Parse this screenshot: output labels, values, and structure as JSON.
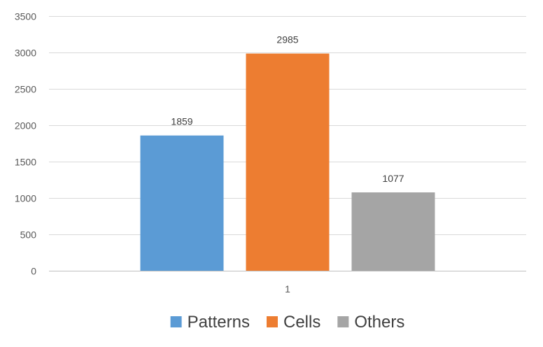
{
  "chart_data": {
    "type": "bar",
    "categories": [
      "1"
    ],
    "series": [
      {
        "name": "Patterns",
        "values": [
          1859
        ],
        "color": "#5b9bd5"
      },
      {
        "name": "Cells",
        "values": [
          2985
        ],
        "color": "#ed7d31"
      },
      {
        "name": "Others",
        "values": [
          1077
        ],
        "color": "#a5a5a5"
      }
    ],
    "title": "",
    "xlabel": "",
    "ylabel": "",
    "ylim": [
      0,
      3500
    ],
    "yticks": [
      0,
      500,
      1000,
      1500,
      2000,
      2500,
      3000,
      3500
    ],
    "grid": true,
    "data_labels": true,
    "legend_position": "bottom"
  }
}
